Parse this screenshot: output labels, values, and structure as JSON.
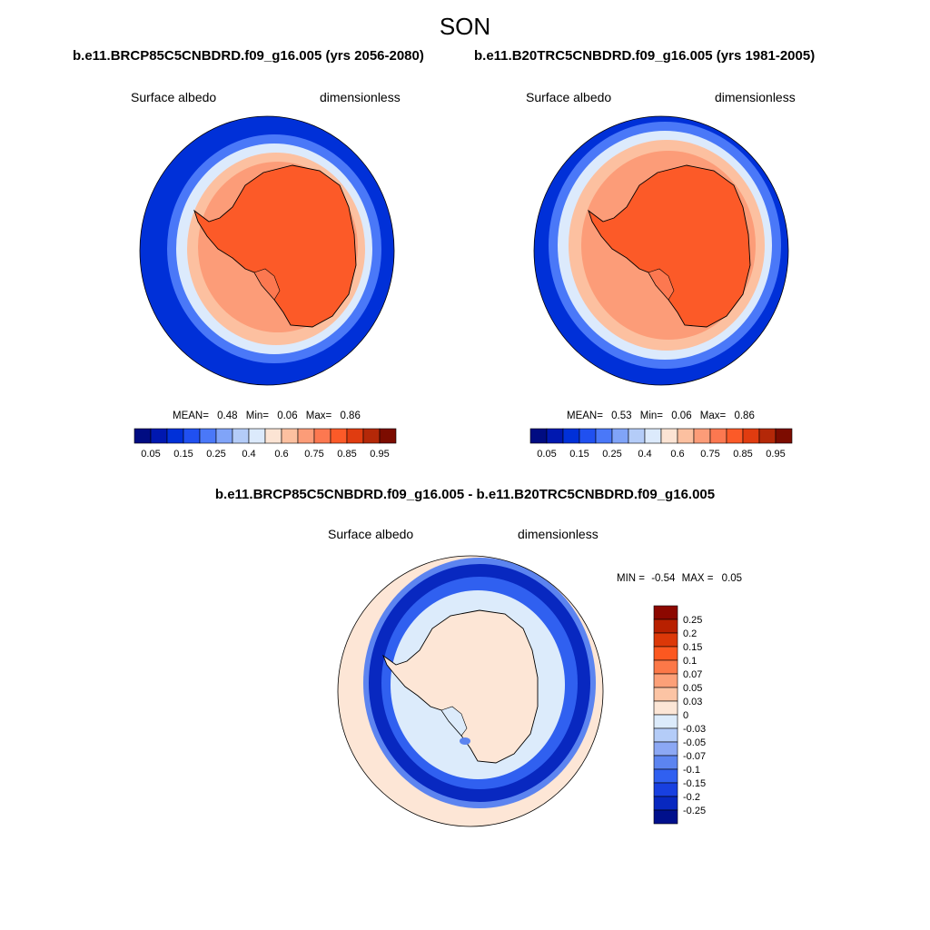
{
  "title": "SON",
  "colors": {
    "ocean_blue": "#0025B8",
    "ice_orange": "#FF5A1E",
    "land_line": "#000000",
    "diff_bg": "#FDE6D6",
    "diff_land": "#DCEBFB"
  },
  "chart_data": [
    {
      "type": "heatmap",
      "projection": "south-polar-stereographic",
      "title": "b.e11.BRCP85C5CNBDRD.f09_g16.005 (yrs 2056-2080)",
      "variable_label": "Surface albedo",
      "units_label": "dimensionless",
      "stats": {
        "mean_label": "MEAN=",
        "mean": "0.48",
        "min_label": "Min=",
        "min": "0.06",
        "max_label": "Max=",
        "max": "0.86"
      },
      "colorbar": {
        "orientation": "horizontal",
        "colors": [
          "#000C82",
          "#0018B0",
          "#0030D8",
          "#2050F0",
          "#4A78F8",
          "#80A4F8",
          "#B4CCF8",
          "#DCEAFC",
          "#FCE4D4",
          "#FCC0A0",
          "#FC9C78",
          "#FC7850",
          "#FC5A28",
          "#E03C10",
          "#B42808",
          "#7C0C00"
        ],
        "tick_labels": [
          "0.05",
          "0.15",
          "0.25",
          "0.4",
          "0.6",
          "0.75",
          "0.85",
          "0.95"
        ]
      }
    },
    {
      "type": "heatmap",
      "projection": "south-polar-stereographic",
      "title": "b.e11.B20TRC5CNBDRD.f09_g16.005 (yrs 1981-2005)",
      "variable_label": "Surface albedo",
      "units_label": "dimensionless",
      "stats": {
        "mean_label": "MEAN=",
        "mean": "0.53",
        "min_label": "Min=",
        "min": "0.06",
        "max_label": "Max=",
        "max": "0.86"
      },
      "colorbar": {
        "orientation": "horizontal",
        "colors": [
          "#000C82",
          "#0018B0",
          "#0030D8",
          "#2050F0",
          "#4A78F8",
          "#80A4F8",
          "#B4CCF8",
          "#DCEAFC",
          "#FCE4D4",
          "#FCC0A0",
          "#FC9C78",
          "#FC7850",
          "#FC5A28",
          "#E03C10",
          "#B42808",
          "#7C0C00"
        ],
        "tick_labels": [
          "0.05",
          "0.15",
          "0.25",
          "0.4",
          "0.6",
          "0.75",
          "0.85",
          "0.95"
        ]
      }
    },
    {
      "type": "heatmap",
      "projection": "south-polar-stereographic",
      "title": "b.e11.BRCP85C5CNBDRD.f09_g16.005 - b.e11.B20TRC5CNBDRD.f09_g16.005",
      "variable_label": "Surface albedo",
      "units_label": "dimensionless",
      "stats": {
        "min_label": "MIN =",
        "min": "-0.54",
        "max_label": "MAX =",
        "max": "0.05"
      },
      "colorbar": {
        "orientation": "vertical",
        "colors": [
          "#8C0800",
          "#B82000",
          "#DC3808",
          "#FC5820",
          "#FC7848",
          "#FCA078",
          "#FCC4A4",
          "#FCE6D6",
          "#DCEBFB",
          "#B4CCF8",
          "#8CA8F4",
          "#5C84F0",
          "#3060F0",
          "#1840E0",
          "#0828C0",
          "#00108C"
        ],
        "tick_labels": [
          "0.25",
          "0.2",
          "0.15",
          "0.1",
          "0.07",
          "0.05",
          "0.03",
          "0",
          "-0.03",
          "-0.05",
          "-0.07",
          "-0.1",
          "-0.15",
          "-0.2",
          "-0.25"
        ]
      }
    }
  ]
}
